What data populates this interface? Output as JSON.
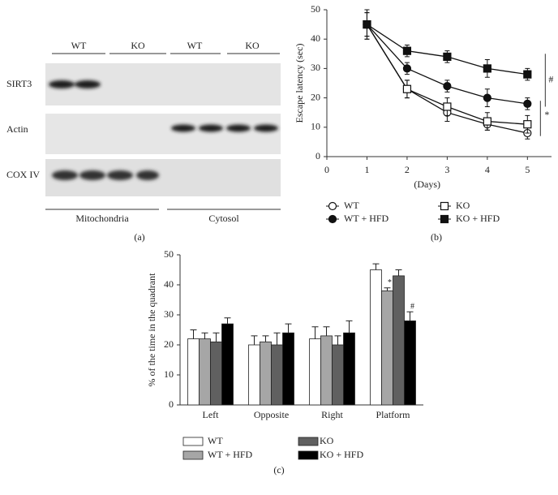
{
  "blot": {
    "lanes": [
      "WT",
      "KO",
      "WT",
      "KO"
    ],
    "rows": [
      "SIRT3",
      "Actin",
      "COX IV"
    ],
    "fractions": [
      "Mitochondria",
      "Cytosol"
    ],
    "panel": "(a)"
  },
  "chart_data": [
    {
      "type": "line",
      "panel": "(b)",
      "xlabel": "(Days)",
      "ylabel": "Escape latency (sec)",
      "x": [
        1,
        2,
        3,
        4,
        5
      ],
      "xlim": [
        0,
        5.6
      ],
      "xticks": [
        0,
        1,
        2,
        3,
        4,
        5
      ],
      "ylim": [
        0,
        50
      ],
      "yticks": [
        0,
        10,
        20,
        30,
        40,
        50
      ],
      "series": [
        {
          "name": "WT",
          "color": "#111111",
          "marker": "circle",
          "filled": false,
          "values": [
            45,
            23,
            15,
            11,
            8
          ],
          "errors": [
            5,
            3,
            3,
            2,
            2
          ]
        },
        {
          "name": "WT + HFD",
          "color": "#111111",
          "marker": "circle",
          "filled": true,
          "values": [
            45,
            30,
            24,
            20,
            18
          ],
          "errors": [
            4,
            2,
            2,
            3,
            2
          ]
        },
        {
          "name": "KO",
          "color": "#111111",
          "marker": "square",
          "filled": false,
          "values": [
            45,
            23,
            17,
            12,
            11
          ],
          "errors": [
            4,
            3,
            3,
            3,
            3
          ]
        },
        {
          "name": "KO + HFD",
          "color": "#111111",
          "marker": "square",
          "filled": true,
          "values": [
            45,
            36,
            34,
            30,
            28
          ],
          "errors": [
            5,
            2,
            2,
            3,
            2
          ]
        }
      ],
      "annotations": [
        "#",
        "*"
      ]
    },
    {
      "type": "bar",
      "panel": "(c)",
      "ylabel": "% of the time in the quadrant",
      "categories": [
        "Left",
        "Opposite",
        "Right",
        "Platform"
      ],
      "ylim": [
        0,
        50
      ],
      "yticks": [
        0,
        10,
        20,
        30,
        40,
        50
      ],
      "series": [
        {
          "name": "WT",
          "color": "#ffffff",
          "values": [
            22,
            20,
            22,
            45
          ],
          "errors": [
            3,
            3,
            4,
            2
          ]
        },
        {
          "name": "WT + HFD",
          "color": "#a6a6a6",
          "values": [
            22,
            21,
            23,
            38
          ],
          "errors": [
            2,
            2,
            3,
            1
          ]
        },
        {
          "name": "KO",
          "color": "#606060",
          "values": [
            21,
            20,
            20,
            43
          ],
          "errors": [
            3,
            4,
            3,
            2
          ]
        },
        {
          "name": "KO + HFD",
          "color": "#000000",
          "values": [
            27,
            24,
            24,
            28
          ],
          "errors": [
            2,
            3,
            4,
            3
          ]
        }
      ],
      "annotations": [
        "*",
        "#"
      ]
    }
  ]
}
